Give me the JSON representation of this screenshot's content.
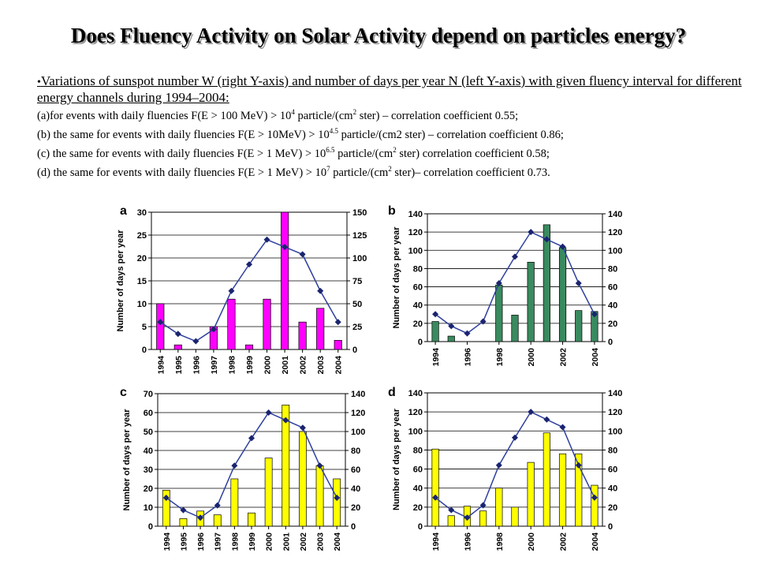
{
  "title": "Does Fluency Activity on Solar Activity depend on particles energy?",
  "intro": "Variations of sunspot number W (right Y-axis) and number of days per year N (left Y-axis) with given fluency interval for different energy channels during 1994–2004:",
  "conditions": [
    {
      "prefix": "(a)for events with daily fluencies F(E > 100 MeV) > 10",
      "sup": "4",
      "mid": " particle/(cm",
      "sup2": "2",
      "suffix": " ster) – correlation coefficient 0.55;"
    },
    {
      "prefix": "(b) the same for events with daily fluencies F(E > 10MeV) > 10",
      "sup": "4.5",
      "mid": " particle/(cm2 ster) – correlation coefficient 0.86;",
      "sup2": "",
      "suffix": ""
    },
    {
      "prefix": " (c) the same for events with daily fluencies F(E > 1 MeV) > 10",
      "sup": "6.5",
      "mid": " particle/(cm",
      "sup2": "2",
      "suffix": " ster) correlation coefficient 0.58;"
    },
    {
      "prefix": "(d) the same for events with daily fluencies F(E > 1 MeV) > 10",
      "sup": "7",
      "mid": " particle/(cm",
      "sup2": "2",
      "suffix": " ster)– correlation coefficient 0.73."
    }
  ],
  "chart_data": [
    {
      "panel": "a",
      "type": "bar",
      "ylabel": "Number of days per year",
      "bar_color": "#ff00ff",
      "x_tick_labels": [
        "1994",
        "1995",
        "1996",
        "1997",
        "1998",
        "1999",
        "2000",
        "2001",
        "2002",
        "2003",
        "2004"
      ],
      "ylim": [
        0,
        30
      ],
      "yticks": [
        "0",
        "5",
        "10",
        "15",
        "20",
        "25",
        "30"
      ],
      "y2lim": [
        0,
        150
      ],
      "y2ticks": [
        "0",
        "25",
        "50",
        "75",
        "100",
        "125",
        "150"
      ],
      "categories": [
        "1994",
        "1995",
        "1996",
        "1997",
        "1998",
        "1999",
        "2000",
        "2001",
        "2002",
        "2003",
        "2004"
      ],
      "series": [
        {
          "values": [
            10,
            1,
            0,
            5,
            11,
            1,
            11,
            30,
            6,
            9,
            2
          ]
        },
        {
          "axis": "right",
          "values": [
            30,
            17,
            9,
            22,
            64,
            93,
            120,
            112,
            104,
            64,
            30
          ]
        }
      ]
    },
    {
      "panel": "b",
      "type": "bar",
      "ylabel": "Number of days per year",
      "bar_color": "#3a8a5f",
      "x_tick_labels": [
        "1994",
        "1996",
        "1998",
        "2000",
        "2002",
        "2004"
      ],
      "ylim": [
        0,
        140
      ],
      "yticks": [
        "0",
        "20",
        "40",
        "60",
        "80",
        "100",
        "120",
        "140"
      ],
      "y2lim": [
        0,
        140
      ],
      "y2ticks": [
        "0",
        "20",
        "40",
        "60",
        "80",
        "100",
        "120",
        "140"
      ],
      "categories": [
        "1994",
        "1995",
        "1996",
        "1997",
        "1998",
        "1999",
        "2000",
        "2001",
        "2002",
        "2003",
        "2004"
      ],
      "series": [
        {
          "values": [
            22,
            6,
            0,
            0,
            62,
            29,
            87,
            128,
            103,
            34,
            33
          ]
        },
        {
          "axis": "right",
          "values": [
            30,
            17,
            9,
            22,
            64,
            93,
            120,
            112,
            104,
            64,
            30
          ]
        }
      ]
    },
    {
      "panel": "c",
      "type": "bar",
      "ylabel": "Number of days per year",
      "bar_color": "#ffff00",
      "x_tick_labels": [
        "1994",
        "1995",
        "1996",
        "1997",
        "1998",
        "1999",
        "2000",
        "2001",
        "2002",
        "2003",
        "2004"
      ],
      "ylim": [
        0,
        70
      ],
      "yticks": [
        "0",
        "10",
        "20",
        "30",
        "40",
        "50",
        "60",
        "70"
      ],
      "y2lim": [
        0,
        140
      ],
      "y2ticks": [
        "0",
        "20",
        "40",
        "60",
        "80",
        "100",
        "120",
        "140"
      ],
      "categories": [
        "1994",
        "1995",
        "1996",
        "1997",
        "1998",
        "1999",
        "2000",
        "2001",
        "2002",
        "2003",
        "2004"
      ],
      "series": [
        {
          "values": [
            19,
            4,
            8,
            6,
            25,
            7,
            36,
            64,
            50,
            32,
            25
          ]
        },
        {
          "axis": "right",
          "values": [
            30,
            17,
            9,
            22,
            64,
            93,
            120,
            112,
            104,
            64,
            30
          ]
        }
      ]
    },
    {
      "panel": "d",
      "type": "bar",
      "ylabel": "Number of days per year",
      "bar_color": "#ffff00",
      "x_tick_labels": [
        "1994",
        "1996",
        "1998",
        "2000",
        "2002",
        "2004"
      ],
      "ylim": [
        0,
        140
      ],
      "yticks": [
        "0",
        "20",
        "40",
        "60",
        "80",
        "100",
        "120",
        "140"
      ],
      "y2lim": [
        0,
        140
      ],
      "y2ticks": [
        "0",
        "20",
        "40",
        "60",
        "80",
        "100",
        "120",
        "140"
      ],
      "categories": [
        "1994",
        "1995",
        "1996",
        "1997",
        "1998",
        "1999",
        "2000",
        "2001",
        "2002",
        "2003",
        "2004"
      ],
      "series": [
        {
          "values": [
            81,
            11,
            21,
            16,
            40,
            20,
            67,
            98,
            76,
            76,
            43
          ]
        },
        {
          "axis": "right",
          "values": [
            30,
            17,
            9,
            22,
            64,
            93,
            120,
            112,
            104,
            64,
            30
          ]
        }
      ]
    }
  ]
}
